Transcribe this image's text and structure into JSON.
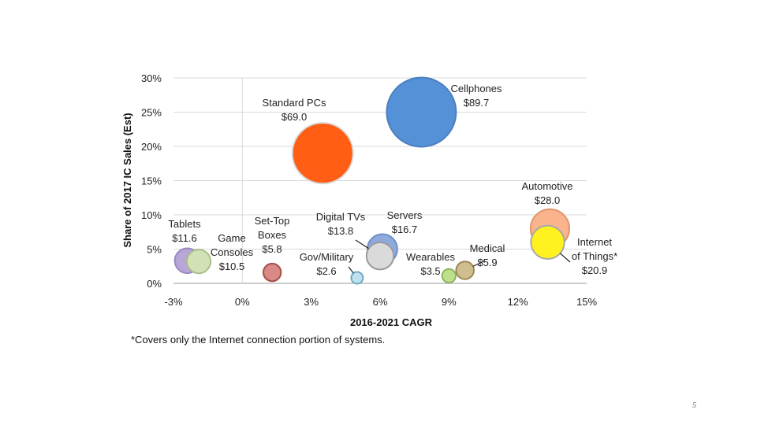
{
  "slide": {
    "page_number": "5"
  },
  "chart_data": {
    "type": "bubble",
    "title": "",
    "xlabel": "2016-2021 CAGR",
    "ylabel": "Share of 2017 IC Sales (Est)",
    "xlim": [
      -3,
      15
    ],
    "ylim": [
      0,
      30
    ],
    "x_ticks": [
      "-3%",
      "0%",
      "3%",
      "6%",
      "9%",
      "12%",
      "15%"
    ],
    "y_ticks": [
      "0%",
      "5%",
      "10%",
      "15%",
      "20%",
      "25%",
      "30%"
    ],
    "grid": true,
    "footnote": "*Covers only the Internet connection portion of systems.",
    "points": [
      {
        "name": "Cellphones",
        "label_lines": [
          "Cellphones",
          "$89.7"
        ],
        "x": 7.8,
        "y": 25.0,
        "size": 89.7,
        "color": "#5591D6",
        "edge": "#4A7FC0"
      },
      {
        "name": "Standard PCs",
        "label_lines": [
          "Standard PCs",
          "$69.0"
        ],
        "x": 3.5,
        "y": 19.0,
        "size": 69.0,
        "color": "#FF5E14",
        "edge": "#D9D9D9"
      },
      {
        "name": "Automotive",
        "label_lines": [
          "Automotive",
          "$28.0"
        ],
        "x": 13.4,
        "y": 8.0,
        "size": 28.0,
        "color": "#F9B48E",
        "edge": "#E0946A"
      },
      {
        "name": "Internet of Things*",
        "label_lines": [
          "Internet",
          "of Things*",
          "$20.9"
        ],
        "x": 13.3,
        "y": 6.0,
        "size": 20.9,
        "color": "#FFF21F",
        "edge": "#A8A8A8"
      },
      {
        "name": "Servers",
        "label_lines": [
          "Servers",
          "$16.7"
        ],
        "x": 6.1,
        "y": 5.0,
        "size": 16.7,
        "color": "#8EAADC",
        "edge": "#6F8EC8"
      },
      {
        "name": "Digital TVs",
        "label_lines": [
          "Digital TVs",
          "$13.8"
        ],
        "x": 6.0,
        "y": 4.0,
        "size": 13.8,
        "color": "#DADADA",
        "edge": "#9A9A9A"
      },
      {
        "name": "Tablets",
        "label_lines": [
          "Tablets",
          "$11.6"
        ],
        "x": -2.4,
        "y": 3.3,
        "size": 11.6,
        "color": "#B7A6D6",
        "edge": "#9C88C4"
      },
      {
        "name": "Game Consoles",
        "label_lines": [
          "Game",
          "Consoles",
          "$10.5"
        ],
        "x": -1.9,
        "y": 3.2,
        "size": 10.5,
        "color": "#D2E2B6",
        "edge": "#A9BE88"
      },
      {
        "name": "Set-Top Boxes",
        "label_lines": [
          "Set-Top",
          "Boxes",
          "$5.8"
        ],
        "x": 1.3,
        "y": 1.6,
        "size": 5.8,
        "color": "#D98A86",
        "edge": "#A64D49"
      },
      {
        "name": "Medical",
        "label_lines": [
          "Medical",
          "$5.9"
        ],
        "x": 9.7,
        "y": 1.9,
        "size": 5.9,
        "color": "#D1BE8E",
        "edge": "#9E8A58"
      },
      {
        "name": "Wearables",
        "label_lines": [
          "Wearables",
          "$3.5"
        ],
        "x": 9.0,
        "y": 1.1,
        "size": 3.5,
        "color": "#BDE08C",
        "edge": "#8EB25E"
      },
      {
        "name": "Gov/Military",
        "label_lines": [
          "Gov/Military",
          "$2.6"
        ],
        "x": 5.0,
        "y": 0.8,
        "size": 2.6,
        "color": "#BFE1EE",
        "edge": "#6FA9C4"
      }
    ]
  }
}
